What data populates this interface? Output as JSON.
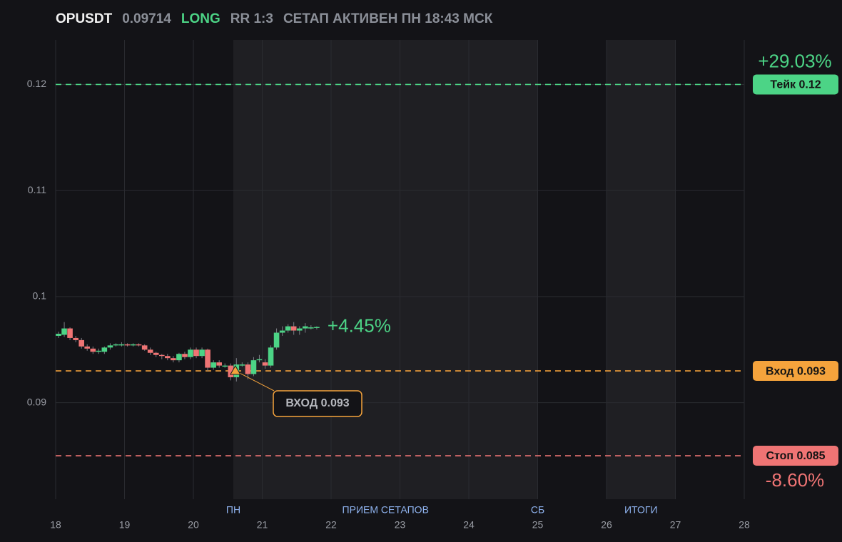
{
  "chart_data": {
    "type": "candlestick",
    "title": "OPUSDT",
    "price": 0.09714,
    "side": "LONG",
    "rr": "RR 1:3",
    "status": "СЕТАП АКТИВЕН ПН 18:43 МСК",
    "x": [
      18.042,
      18.125,
      18.208,
      18.292,
      18.375,
      18.458,
      18.542,
      18.625,
      18.708,
      18.792,
      18.875,
      18.958,
      19.042,
      19.125,
      19.208,
      19.292,
      19.375,
      19.458,
      19.542,
      19.625,
      19.708,
      19.792,
      19.875,
      19.958,
      20.042,
      20.125,
      20.208,
      20.292,
      20.375,
      20.458,
      20.542,
      20.625,
      20.708,
      20.792,
      20.875,
      20.958,
      21.042,
      21.125,
      21.208,
      21.292,
      21.375,
      21.458,
      21.542,
      21.625,
      21.708,
      21.792
    ],
    "open": [
      0.0963,
      0.0964,
      0.097,
      0.0961,
      0.0959,
      0.0953,
      0.0951,
      0.0948,
      0.0948,
      0.0952,
      0.0954,
      0.0954,
      0.0955,
      0.0954,
      0.0955,
      0.0954,
      0.095,
      0.0947,
      0.0945,
      0.0944,
      0.0942,
      0.094,
      0.0946,
      0.0943,
      0.095,
      0.0944,
      0.095,
      0.0933,
      0.0938,
      0.0935,
      0.0935,
      0.0924,
      0.0936,
      0.0936,
      0.0927,
      0.094,
      0.0938,
      0.0935,
      0.0952,
      0.0966,
      0.0968,
      0.0972,
      0.0968,
      0.097,
      0.0971,
      0.0971
    ],
    "high": [
      0.0967,
      0.0976,
      0.0971,
      0.0963,
      0.0961,
      0.0955,
      0.0953,
      0.0951,
      0.0953,
      0.0956,
      0.0956,
      0.0957,
      0.0956,
      0.0956,
      0.0956,
      0.0955,
      0.0952,
      0.0948,
      0.0946,
      0.0946,
      0.0944,
      0.0947,
      0.0948,
      0.0952,
      0.0952,
      0.0952,
      0.0951,
      0.094,
      0.094,
      0.0937,
      0.0937,
      0.0942,
      0.0938,
      0.0938,
      0.0943,
      0.0945,
      0.0941,
      0.0954,
      0.097,
      0.0972,
      0.0974,
      0.0976,
      0.0972,
      0.0975,
      0.0973,
      0.0972
    ],
    "low": [
      0.0961,
      0.0962,
      0.0959,
      0.0957,
      0.0951,
      0.0949,
      0.0946,
      0.0946,
      0.0946,
      0.095,
      0.0953,
      0.0953,
      0.0953,
      0.0953,
      0.0953,
      0.0949,
      0.0945,
      0.0943,
      0.0941,
      0.094,
      0.0938,
      0.0938,
      0.0941,
      0.0941,
      0.0942,
      0.0942,
      0.093,
      0.0931,
      0.0933,
      0.0933,
      0.0921,
      0.092,
      0.0934,
      0.0922,
      0.0925,
      0.0938,
      0.0932,
      0.0933,
      0.095,
      0.0963,
      0.0966,
      0.0964,
      0.0964,
      0.0966,
      0.0969,
      0.0969
    ],
    "close": [
      0.0965,
      0.097,
      0.0961,
      0.0959,
      0.0953,
      0.0951,
      0.0948,
      0.0949,
      0.0952,
      0.0954,
      0.0955,
      0.0955,
      0.0954,
      0.0955,
      0.0954,
      0.095,
      0.0947,
      0.0945,
      0.0944,
      0.0942,
      0.094,
      0.0946,
      0.0943,
      0.095,
      0.0944,
      0.095,
      0.0933,
      0.0938,
      0.0935,
      0.0935,
      0.0924,
      0.0936,
      0.0936,
      0.0927,
      0.094,
      0.0941,
      0.0935,
      0.0952,
      0.0966,
      0.0968,
      0.0972,
      0.0968,
      0.097,
      0.0972,
      0.0971,
      0.09714
    ],
    "up_color": "#4cd486",
    "down_color": "#ef7474",
    "xlim": [
      18,
      28
    ],
    "xticks": [
      18,
      19,
      20,
      21,
      22,
      23,
      24,
      25,
      26,
      27,
      28
    ],
    "ylim": [
      0.0809,
      0.1242
    ],
    "yticks": [
      0.09,
      0.1,
      0.11,
      0.12
    ],
    "grid": true,
    "regions": [
      {
        "start": 20.58,
        "end": 25
      },
      {
        "start": 26,
        "end": 27
      }
    ],
    "markers": [
      {
        "x": 20.58,
        "label": "ПН"
      },
      {
        "x": 22.79,
        "label": "ПРИЕМ СЕТАПОВ"
      },
      {
        "x": 25,
        "label": "СБ"
      },
      {
        "x": 26.5,
        "label": "ИТОГИ"
      }
    ],
    "levels": [
      {
        "value": 0.12,
        "label": "Тейк 0.12",
        "color": "#4cd486",
        "change": 29.03,
        "change_label": "+29.03%"
      },
      {
        "value": 0.093,
        "label": "Вход 0.093",
        "color": "#f5a33c"
      },
      {
        "value": 0.085,
        "label": "Стоп 0.085",
        "color": "#ef7474",
        "change": -8.6,
        "change_label": "-8.60%"
      }
    ],
    "last_change": 4.45,
    "last_change_label": "+4.45%",
    "entry": {
      "x": 20.61,
      "value": 0.093,
      "label": "ВХОД 0.093"
    }
  }
}
